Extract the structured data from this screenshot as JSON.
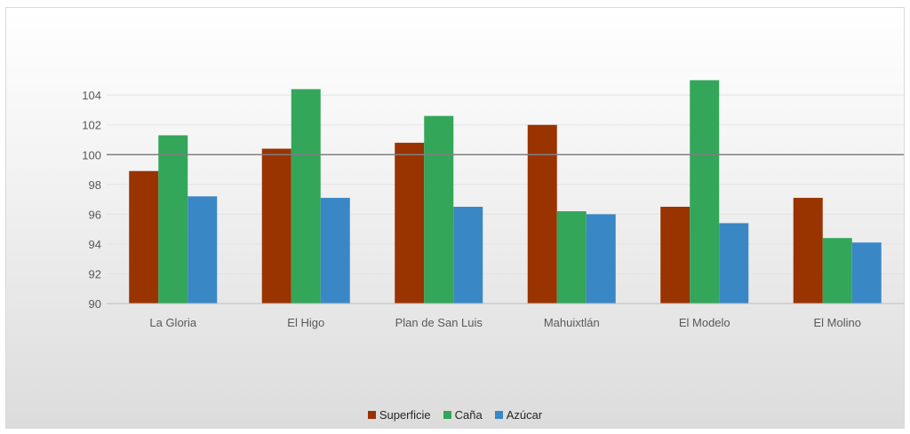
{
  "chart_data": {
    "type": "bar",
    "categories": [
      "La Gloria",
      "El Higo",
      "Plan de San Luis",
      "Mahuixtlán",
      "El Modelo",
      "El Molino"
    ],
    "series": [
      {
        "name": "Superficie",
        "color": "#993300",
        "values": [
          98.9,
          100.4,
          100.8,
          102.0,
          96.5,
          97.1
        ]
      },
      {
        "name": "Caña",
        "color": "#33a65a",
        "values": [
          101.3,
          104.4,
          102.6,
          96.2,
          105.0,
          94.4
        ]
      },
      {
        "name": "Azúcar",
        "color": "#3a87c6",
        "values": [
          97.2,
          97.1,
          96.5,
          96.0,
          95.4,
          94.1
        ]
      }
    ],
    "yticks": [
      90,
      92,
      94,
      96,
      98,
      100,
      102,
      104
    ],
    "ylim": [
      90,
      105.5
    ],
    "reference_line": 100,
    "grid": true,
    "legend_position": "bottom"
  }
}
